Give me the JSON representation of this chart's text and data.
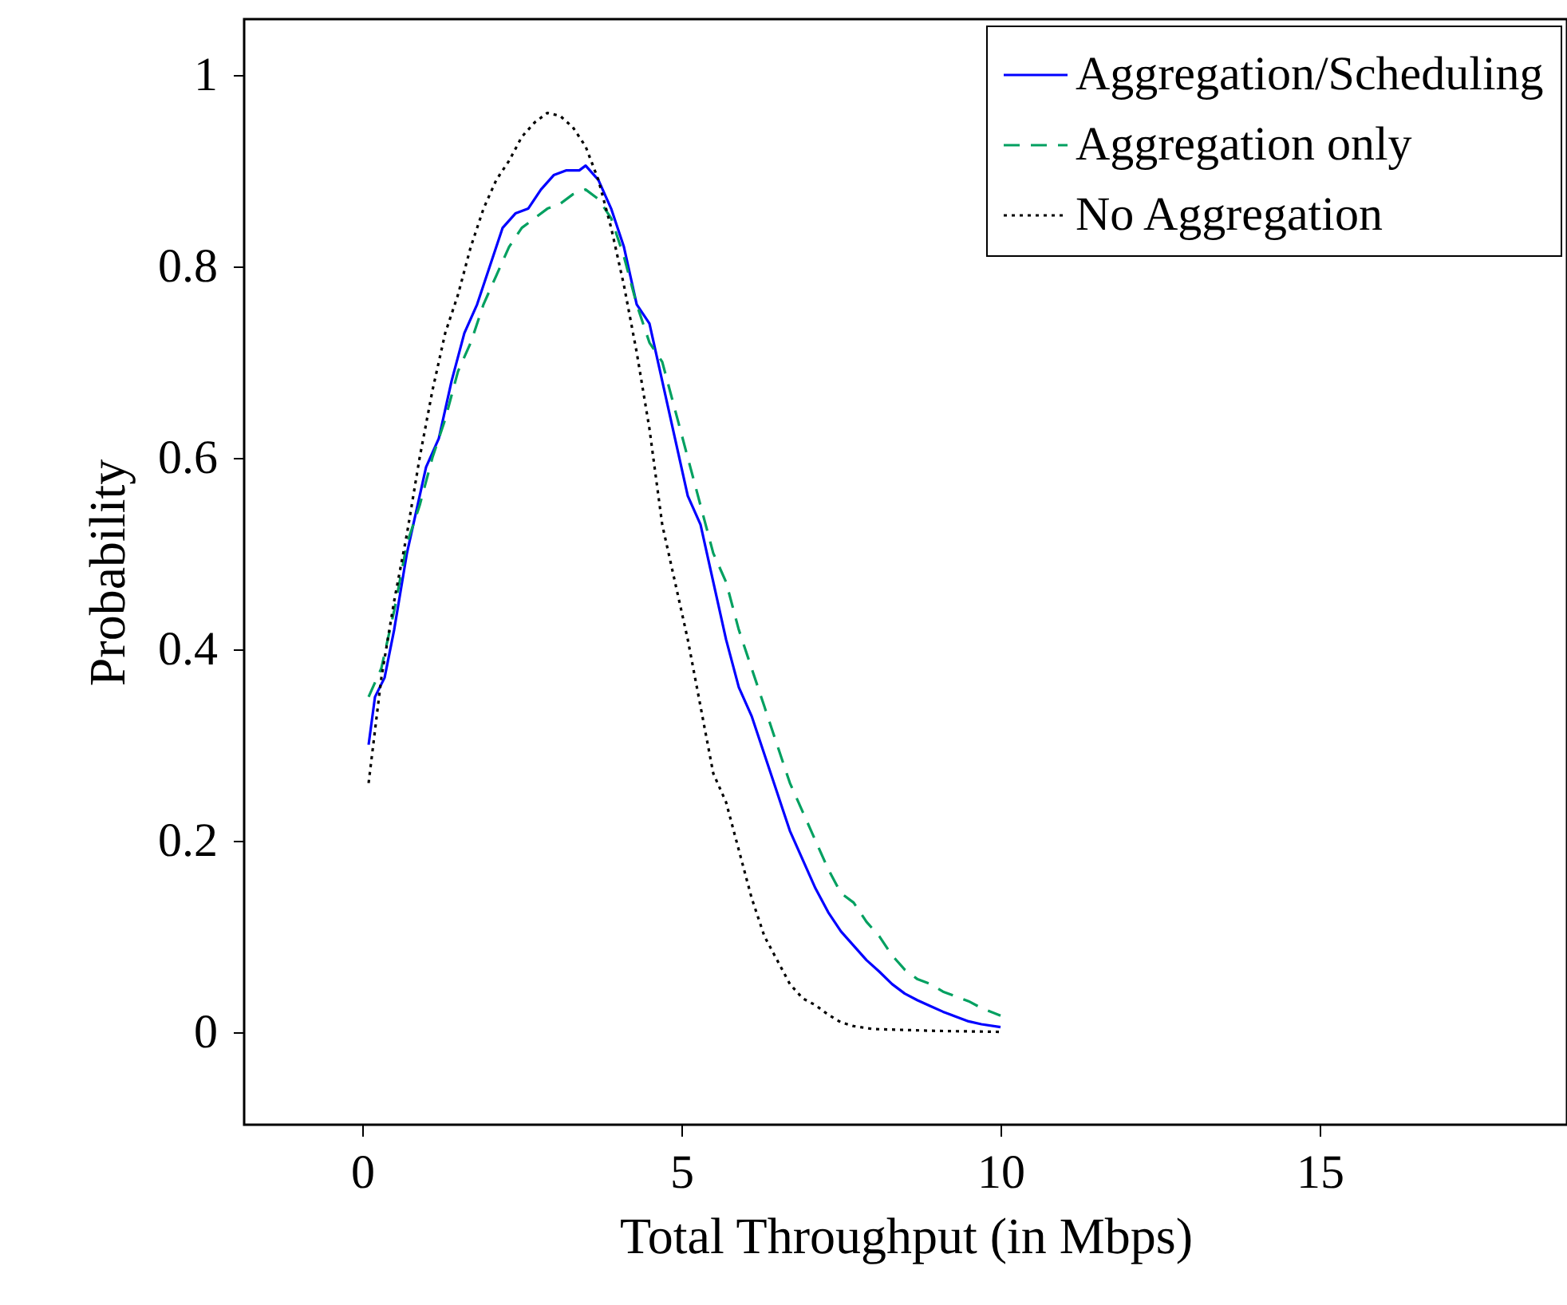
{
  "chart_data": {
    "type": "line",
    "xlabel": "Total Throughput (in Mbps)",
    "ylabel": "Probability",
    "xlim": [
      -1.85,
      18.875
    ],
    "ylim": [
      -0.097,
      1.058
    ],
    "xticks": [
      0,
      5,
      10,
      15
    ],
    "yticks": [
      0,
      0.2,
      0.4,
      0.6,
      0.8,
      1
    ],
    "grid": false,
    "legend": "top right",
    "marker": "none",
    "series": [
      {
        "name": "Aggregation/Scheduling",
        "color": "#0000ff",
        "line_style": "solid",
        "x": [
          0.1,
          0.2,
          0.35,
          0.5,
          0.7,
          0.9,
          1.0,
          1.2,
          1.4,
          1.6,
          1.8,
          2.0,
          2.2,
          2.4,
          2.6,
          2.8,
          3.0,
          3.2,
          3.4,
          3.5,
          3.7,
          3.9,
          4.1,
          4.3,
          4.5,
          4.7,
          4.9,
          5.1,
          5.3,
          5.5,
          5.7,
          5.9,
          6.1,
          6.3,
          6.5,
          6.7,
          6.9,
          7.1,
          7.3,
          7.5,
          7.7,
          7.9,
          8.1,
          8.3,
          8.5,
          8.7,
          8.9,
          9.1,
          9.3,
          9.5,
          9.7,
          10.0
        ],
        "values": [
          0.3,
          0.35,
          0.37,
          0.42,
          0.5,
          0.56,
          0.59,
          0.62,
          0.68,
          0.73,
          0.76,
          0.8,
          0.84,
          0.855,
          0.86,
          0.88,
          0.895,
          0.9,
          0.9,
          0.905,
          0.89,
          0.86,
          0.82,
          0.76,
          0.74,
          0.68,
          0.62,
          0.56,
          0.53,
          0.47,
          0.41,
          0.36,
          0.33,
          0.29,
          0.25,
          0.21,
          0.18,
          0.15,
          0.125,
          0.105,
          0.09,
          0.075,
          0.063,
          0.05,
          0.04,
          0.033,
          0.027,
          0.021,
          0.016,
          0.011,
          0.008,
          0.005
        ]
      },
      {
        "name": "Aggregation only",
        "color": "#00a060",
        "line_style": "dashed",
        "x": [
          0.1,
          0.3,
          0.5,
          0.7,
          0.9,
          1.1,
          1.3,
          1.5,
          1.7,
          1.9,
          2.1,
          2.3,
          2.5,
          2.7,
          2.9,
          3.1,
          3.3,
          3.5,
          3.7,
          3.9,
          4.1,
          4.3,
          4.5,
          4.7,
          4.9,
          5.1,
          5.3,
          5.5,
          5.7,
          5.9,
          6.1,
          6.3,
          6.5,
          6.7,
          6.9,
          7.1,
          7.3,
          7.5,
          7.7,
          7.9,
          8.1,
          8.3,
          8.5,
          8.7,
          8.9,
          9.1,
          9.3,
          9.5,
          9.7,
          10.0
        ],
        "values": [
          0.35,
          0.38,
          0.44,
          0.51,
          0.55,
          0.6,
          0.64,
          0.69,
          0.72,
          0.76,
          0.79,
          0.82,
          0.84,
          0.85,
          0.86,
          0.865,
          0.875,
          0.88,
          0.87,
          0.85,
          0.81,
          0.76,
          0.72,
          0.7,
          0.65,
          0.6,
          0.55,
          0.5,
          0.47,
          0.42,
          0.38,
          0.34,
          0.3,
          0.26,
          0.23,
          0.2,
          0.17,
          0.145,
          0.135,
          0.115,
          0.1,
          0.08,
          0.065,
          0.055,
          0.05,
          0.042,
          0.037,
          0.032,
          0.025,
          0.017
        ]
      },
      {
        "name": "No Aggregation",
        "color": "#000000",
        "line_style": "dotted",
        "x": [
          0.1,
          0.3,
          0.5,
          0.7,
          0.9,
          1.1,
          1.3,
          1.5,
          1.7,
          1.9,
          2.1,
          2.3,
          2.5,
          2.7,
          2.9,
          3.1,
          3.3,
          3.5,
          3.7,
          3.9,
          4.1,
          4.3,
          4.5,
          4.7,
          4.9,
          5.1,
          5.3,
          5.5,
          5.7,
          5.9,
          6.1,
          6.3,
          6.5,
          6.7,
          6.9,
          7.1,
          7.3,
          7.5,
          7.7,
          8.0,
          8.5,
          9.0,
          10.0
        ],
        "values": [
          0.26,
          0.37,
          0.45,
          0.52,
          0.6,
          0.67,
          0.73,
          0.77,
          0.82,
          0.86,
          0.89,
          0.91,
          0.935,
          0.95,
          0.96,
          0.957,
          0.945,
          0.925,
          0.89,
          0.84,
          0.78,
          0.71,
          0.63,
          0.53,
          0.47,
          0.41,
          0.34,
          0.27,
          0.24,
          0.19,
          0.14,
          0.1,
          0.075,
          0.05,
          0.035,
          0.028,
          0.018,
          0.01,
          0.006,
          0.003,
          0.002,
          0.001,
          0
        ]
      }
    ]
  }
}
